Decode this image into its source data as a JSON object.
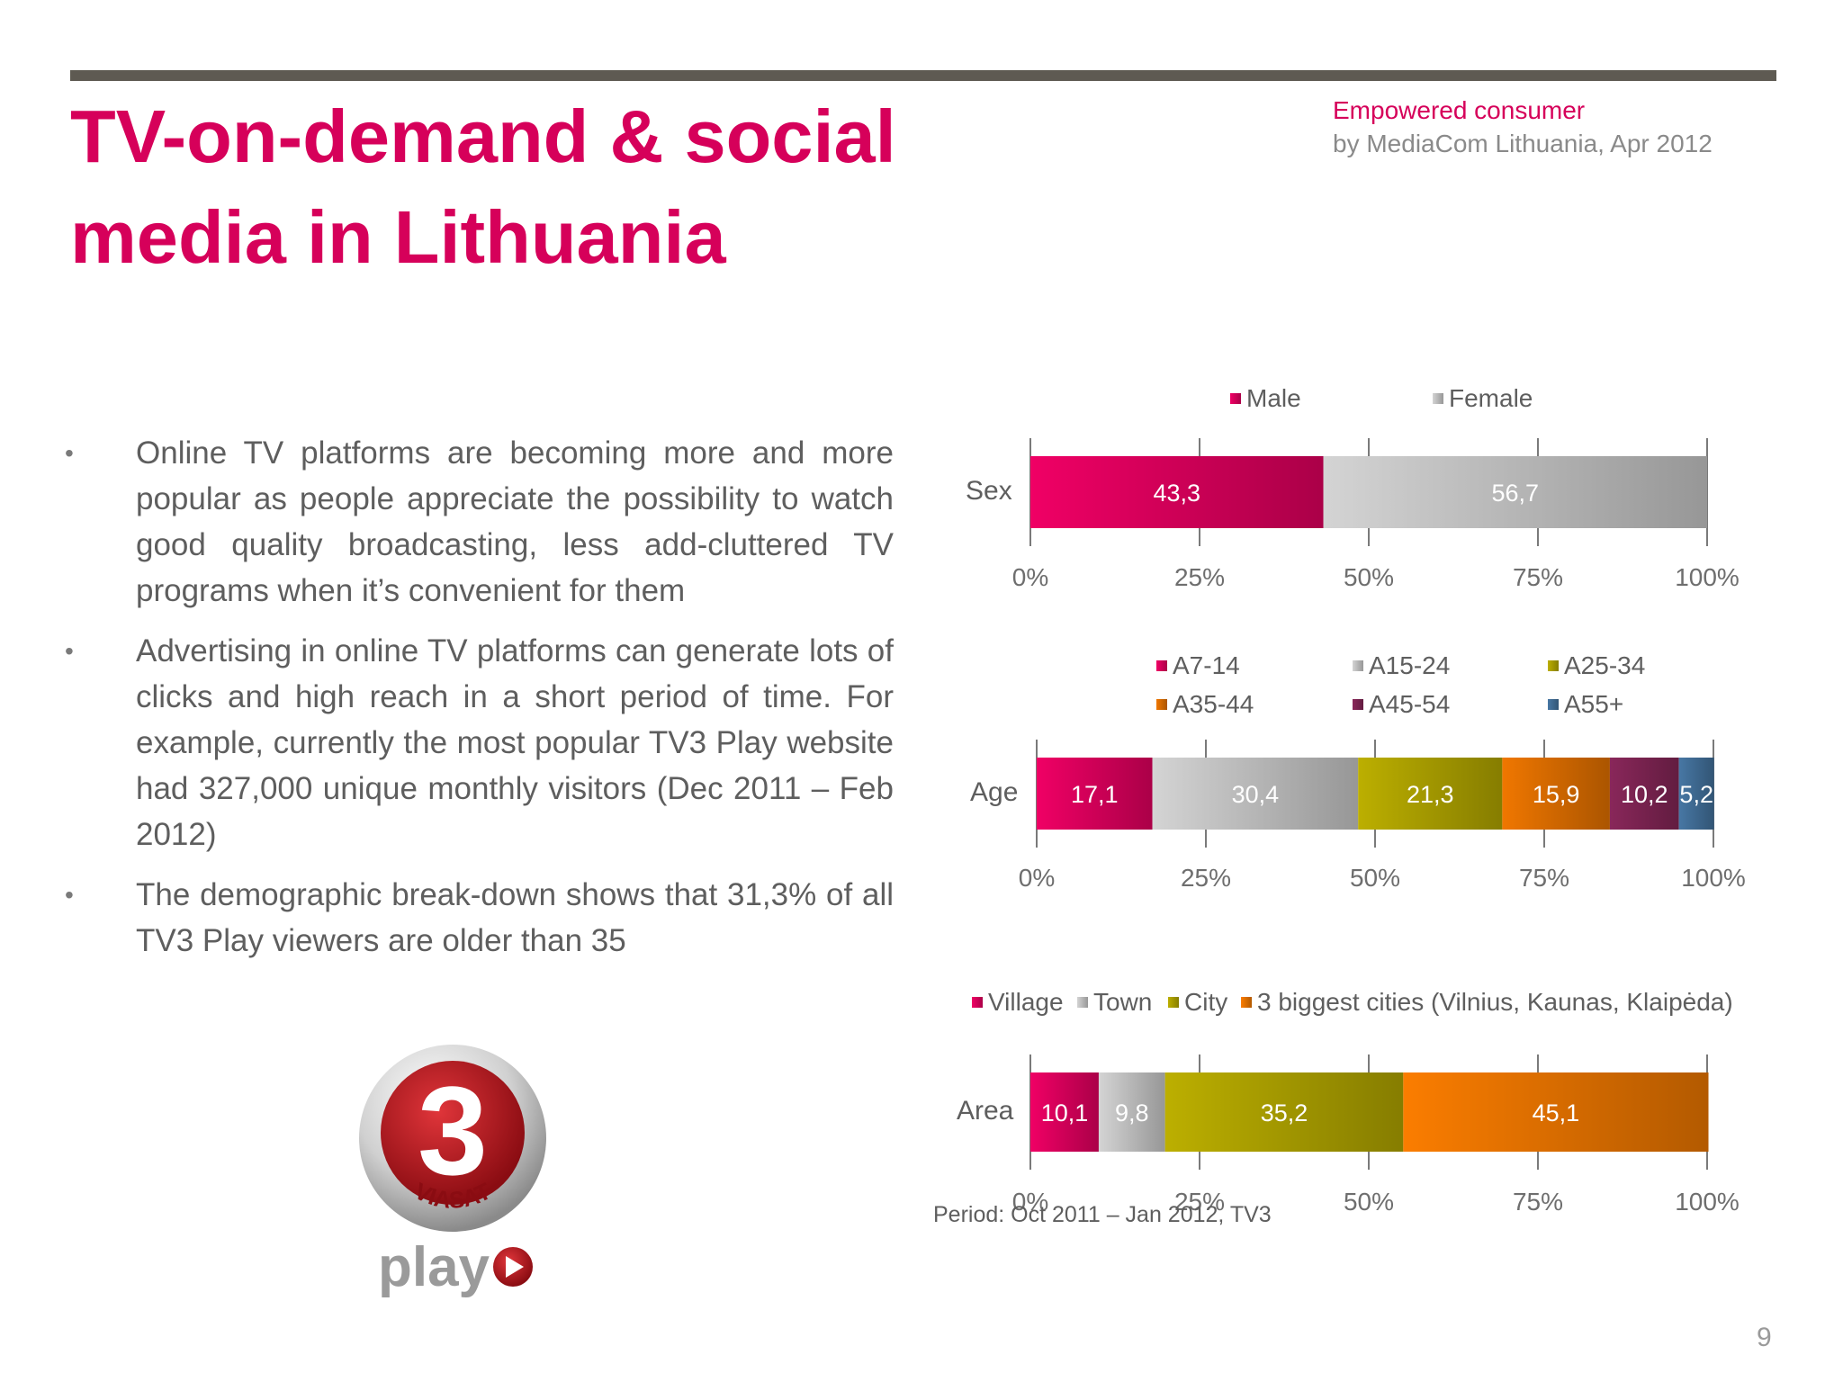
{
  "slide": {
    "title_line1": "TV-on-demand & social",
    "title_line2": "media in Lithuania",
    "subtitle_line1": "Empowered consumer",
    "subtitle_line2": "by MediaCom Lithuania, Apr 2012",
    "page_number": "9",
    "period_note": "Period: Oct 2011 – Jan 2012, TV3"
  },
  "bullets": [
    {
      "text": "Online TV platforms are becoming more and more popular as people appreciate the possibility to watch good quality broadcasting, less add-cluttered TV programs when it’s convenient for them"
    },
    {
      "text": "Advertising in online TV platforms can generate lots of clicks and high reach in a short period of time. For example, currently the most popular TV3 Play website had 327,000 unique monthly visitors (Dec 2011 – Feb 2012)"
    },
    {
      "text": "The demographic break-down shows that 31,3% of all TV3 Play viewers are older than 35"
    }
  ],
  "logo": {
    "number": "3",
    "brand": "VIASAT",
    "word": "play"
  },
  "chart_data": [
    {
      "type": "bar",
      "stacked": true,
      "orientation": "horizontal",
      "category": "Sex",
      "series": [
        {
          "name": "Male",
          "value": 43.3,
          "label": "43,3",
          "color": "#d6005a"
        },
        {
          "name": "Female",
          "value": 56.7,
          "label": "56,7",
          "color": "#bdbdbd"
        }
      ],
      "xlim": [
        0,
        100
      ],
      "xticks": [
        "0%",
        "25%",
        "50%",
        "75%",
        "100%"
      ],
      "legend": "top"
    },
    {
      "type": "bar",
      "stacked": true,
      "orientation": "horizontal",
      "category": "Age",
      "series": [
        {
          "name": "A7-14",
          "value": 17.1,
          "label": "17,1",
          "color": "#d6005a"
        },
        {
          "name": "A15-24",
          "value": 30.4,
          "label": "30,4",
          "color": "#bdbdbd"
        },
        {
          "name": "A25-34",
          "value": 21.3,
          "label": "21,3",
          "color": "#a89c00"
        },
        {
          "name": "A35-44",
          "value": 15.9,
          "label": "15,9",
          "color": "#d66a00"
        },
        {
          "name": "A45-54",
          "value": 10.2,
          "label": "10,2",
          "color": "#7a2350"
        },
        {
          "name": "A55+",
          "value": 5.2,
          "label": "5,2",
          "color": "#3f6a92"
        }
      ],
      "xlim": [
        0,
        100
      ],
      "xticks": [
        "0%",
        "25%",
        "50%",
        "75%",
        "100%"
      ],
      "legend": "top"
    },
    {
      "type": "bar",
      "stacked": true,
      "orientation": "horizontal",
      "category": "Area",
      "series": [
        {
          "name": "Village",
          "value": 10.1,
          "label": "10,1",
          "color": "#d6005a"
        },
        {
          "name": "Town",
          "value": 9.8,
          "label": "9,8",
          "color": "#bdbdbd"
        },
        {
          "name": "City",
          "value": 35.2,
          "label": "35,2",
          "color": "#a89c00"
        },
        {
          "name": "3 biggest cities (Vilnius, Kaunas, Klaipėda)",
          "value": 45.1,
          "label": "45,1",
          "color": "#e07000"
        }
      ],
      "xlim": [
        0,
        100
      ],
      "xticks": [
        "0%",
        "25%",
        "50%",
        "75%",
        "100%"
      ],
      "legend": "top"
    }
  ]
}
